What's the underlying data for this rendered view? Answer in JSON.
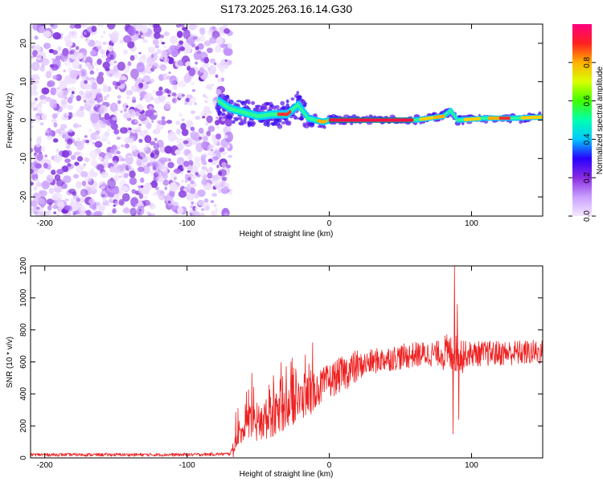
{
  "figure": {
    "title": "S173.2025.263.16.14.G30"
  },
  "chart_data": [
    {
      "type": "heatmap",
      "title": "S173.2025.263.16.14.G30",
      "xlabel": "Height of straight line (km)",
      "ylabel": "Frequency (Hz)",
      "xlim": [
        -210,
        150
      ],
      "ylim": [
        -25,
        25
      ],
      "xticks": [
        -200,
        -100,
        0,
        100
      ],
      "yticks": [
        -20,
        -10,
        0,
        10,
        20
      ],
      "colorbar": {
        "label": "Normalized spectral amplitude",
        "range": [
          0,
          1
        ],
        "ticks": [
          0.0,
          0.2,
          0.4,
          0.6,
          0.8
        ],
        "tick_labels": [
          "0.0",
          "0.2",
          "0.4",
          "0.6",
          "0.8"
        ],
        "colors": [
          "#f4e8ff",
          "#c9a0ff",
          "#8a2be2",
          "#2a00ff",
          "#00c8ff",
          "#00ffb0",
          "#40ff00",
          "#d8ff00",
          "#ffb000",
          "#ff2020",
          "#ff0080"
        ]
      },
      "signal_ridge": {
        "description_free_points": [
          {
            "x": -78,
            "freq": 5.0
          },
          {
            "x": -70,
            "freq": 3.0
          },
          {
            "x": -60,
            "freq": 2.0
          },
          {
            "x": -50,
            "freq": 1.0
          },
          {
            "x": -40,
            "freq": 1.5
          },
          {
            "x": -30,
            "freq": 1.5
          },
          {
            "x": -22,
            "freq": 4.0
          },
          {
            "x": -15,
            "freq": 0.5
          },
          {
            "x": -5,
            "freq": -0.5
          },
          {
            "x": 0,
            "freq": 0.0
          },
          {
            "x": 30,
            "freq": 0.0
          },
          {
            "x": 60,
            "freq": 0.0
          },
          {
            "x": 80,
            "freq": 1.0
          },
          {
            "x": 85,
            "freq": 2.5
          },
          {
            "x": 90,
            "freq": 0.0
          },
          {
            "x": 110,
            "freq": 0.5
          },
          {
            "x": 130,
            "freq": 0.5
          },
          {
            "x": 150,
            "freq": 0.8
          }
        ],
        "noise_region_x": [
          -210,
          -75
        ]
      }
    },
    {
      "type": "line",
      "xlabel": "Height of straight line (km)",
      "ylabel": "SNR (10 * v/v)",
      "xlim": [
        -210,
        150
      ],
      "ylim": [
        0,
        1200
      ],
      "xticks": [
        -200,
        -100,
        0,
        100
      ],
      "yticks": [
        0,
        200,
        400,
        600,
        800,
        1000,
        1200
      ],
      "series": [
        {
          "name": "SNR",
          "color": "#ee2020",
          "trend_points": [
            {
              "x": -210,
              "y": 20
            },
            {
              "x": -150,
              "y": 20
            },
            {
              "x": -100,
              "y": 20
            },
            {
              "x": -70,
              "y": 25
            },
            {
              "x": -60,
              "y": 180
            },
            {
              "x": -50,
              "y": 220
            },
            {
              "x": -40,
              "y": 260
            },
            {
              "x": -30,
              "y": 310
            },
            {
              "x": -20,
              "y": 360
            },
            {
              "x": -10,
              "y": 420
            },
            {
              "x": 0,
              "y": 480
            },
            {
              "x": 10,
              "y": 530
            },
            {
              "x": 20,
              "y": 570
            },
            {
              "x": 30,
              "y": 600
            },
            {
              "x": 40,
              "y": 620
            },
            {
              "x": 50,
              "y": 630
            },
            {
              "x": 60,
              "y": 645
            },
            {
              "x": 70,
              "y": 650
            },
            {
              "x": 80,
              "y": 655
            },
            {
              "x": 88,
              "y": 650
            },
            {
              "x": 100,
              "y": 650
            },
            {
              "x": 120,
              "y": 655
            },
            {
              "x": 150,
              "y": 660
            }
          ],
          "spikes": [
            {
              "x": 88,
              "y": 1200
            },
            {
              "x": 87,
              "y": 150
            },
            {
              "x": 90,
              "y": 960
            },
            {
              "x": 91,
              "y": 240
            }
          ]
        }
      ]
    }
  ]
}
